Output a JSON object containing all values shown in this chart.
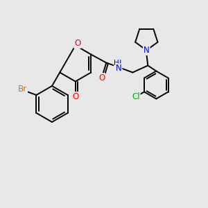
{
  "background_color": "#e8e8e8",
  "bond_color": "#000000",
  "atom_colors": {
    "Br": "#cc7722",
    "O": "#ff0000",
    "N": "#0000ff",
    "Cl": "#00aa00",
    "H": "#808080"
  },
  "figsize": [
    3.0,
    3.0
  ],
  "dpi": 100,
  "bond_lw": 1.4,
  "font_size": 8.5
}
